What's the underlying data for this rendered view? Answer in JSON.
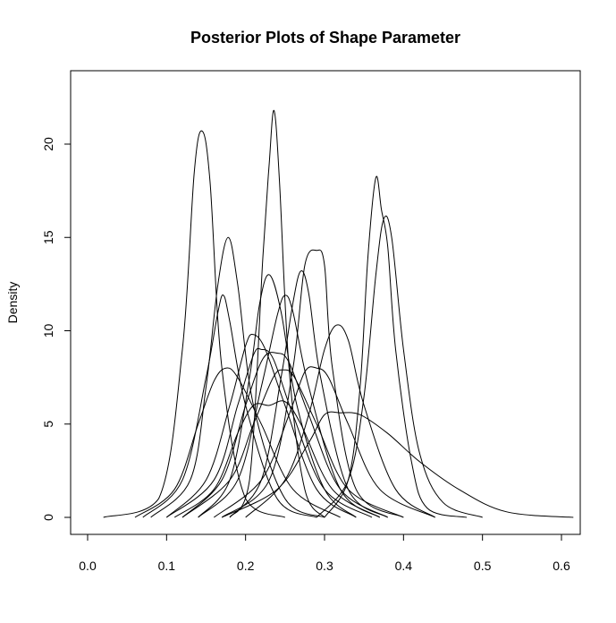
{
  "chart_data": {
    "type": "line",
    "title": "Posterior Plots of Shape Parameter",
    "xlabel": "",
    "ylabel": "Density",
    "xlim": [
      0.0,
      0.62
    ],
    "ylim": [
      0,
      23
    ],
    "x_ticks": [
      0.0,
      0.1,
      0.2,
      0.3,
      0.4,
      0.5,
      0.6
    ],
    "x_tick_labels": [
      "0.0",
      "0.1",
      "0.2",
      "0.3",
      "0.4",
      "0.5",
      "0.6"
    ],
    "y_ticks": [
      0,
      5,
      10,
      15,
      20
    ],
    "y_tick_labels": [
      "0",
      "5",
      "10",
      "15",
      "20"
    ],
    "grid": false,
    "legend": "none",
    "series": [
      {
        "x": [
          0.02,
          0.09,
          0.12,
          0.135,
          0.145,
          0.155,
          0.17,
          0.2,
          0.25
        ],
        "y": [
          0,
          1.0,
          9.0,
          18.5,
          20.7,
          18.0,
          8.0,
          1.0,
          0
        ]
      },
      {
        "x": [
          0.08,
          0.13,
          0.15,
          0.165,
          0.178,
          0.19,
          0.21,
          0.25,
          0.3
        ],
        "y": [
          0,
          2.0,
          7.0,
          12.5,
          15.0,
          12.5,
          6.0,
          1.0,
          0
        ]
      },
      {
        "x": [
          0.07,
          0.12,
          0.15,
          0.165,
          0.172,
          0.18,
          0.2,
          0.24,
          0.29
        ],
        "y": [
          0,
          2.0,
          7.5,
          11.0,
          11.9,
          10.5,
          6.0,
          1.0,
          0
        ]
      },
      {
        "x": [
          0.06,
          0.11,
          0.14,
          0.16,
          0.175,
          0.19,
          0.22,
          0.26,
          0.32
        ],
        "y": [
          0,
          1.5,
          5.0,
          7.3,
          8.0,
          7.5,
          5.0,
          1.5,
          0
        ]
      },
      {
        "x": [
          0.18,
          0.205,
          0.222,
          0.23,
          0.236,
          0.243,
          0.255,
          0.275,
          0.3
        ],
        "y": [
          0,
          2.0,
          14.0,
          19.0,
          21.8,
          18.0,
          8.0,
          1.5,
          0
        ]
      },
      {
        "x": [
          0.14,
          0.18,
          0.205,
          0.218,
          0.23,
          0.245,
          0.265,
          0.3,
          0.34
        ],
        "y": [
          0,
          2.0,
          7.5,
          11.5,
          13.0,
          11.0,
          6.0,
          1.5,
          0
        ]
      },
      {
        "x": [
          0.1,
          0.15,
          0.18,
          0.2,
          0.21,
          0.225,
          0.25,
          0.29,
          0.34
        ],
        "y": [
          0,
          2.0,
          6.0,
          9.2,
          9.8,
          9.0,
          6.0,
          1.5,
          0
        ]
      },
      {
        "x": [
          0.1,
          0.16,
          0.19,
          0.21,
          0.22,
          0.235,
          0.26,
          0.3,
          0.36
        ],
        "y": [
          0,
          2.0,
          6.0,
          8.7,
          9.0,
          8.5,
          5.5,
          1.5,
          0
        ]
      },
      {
        "x": [
          0.12,
          0.17,
          0.2,
          0.222,
          0.24,
          0.255,
          0.28,
          0.32,
          0.38
        ],
        "y": [
          0,
          2.0,
          6.0,
          8.5,
          8.8,
          8.3,
          5.5,
          1.5,
          0
        ]
      },
      {
        "x": [
          0.11,
          0.16,
          0.19,
          0.21,
          0.23,
          0.25,
          0.27,
          0.31,
          0.37
        ],
        "y": [
          0,
          1.5,
          4.5,
          6.0,
          6.0,
          6.2,
          5.0,
          1.5,
          0
        ]
      },
      {
        "x": [
          0.14,
          0.19,
          0.22,
          0.24,
          0.25,
          0.26,
          0.28,
          0.32,
          0.37
        ],
        "y": [
          0,
          2.0,
          7.0,
          10.8,
          11.9,
          11.0,
          7.0,
          1.5,
          0
        ]
      },
      {
        "x": [
          0.12,
          0.18,
          0.21,
          0.235,
          0.248,
          0.262,
          0.29,
          0.33,
          0.4
        ],
        "y": [
          0,
          2.0,
          5.0,
          7.5,
          7.9,
          7.5,
          5.0,
          1.5,
          0
        ]
      },
      {
        "x": [
          0.18,
          0.22,
          0.245,
          0.26,
          0.27,
          0.28,
          0.295,
          0.33,
          0.38
        ],
        "y": [
          0,
          2.0,
          7.5,
          11.5,
          13.2,
          12.0,
          7.5,
          1.5,
          0
        ]
      },
      {
        "x": [
          0.17,
          0.23,
          0.26,
          0.275,
          0.29,
          0.3,
          0.31,
          0.34,
          0.4
        ],
        "y": [
          0,
          2.0,
          8.0,
          13.5,
          14.3,
          13.5,
          8.0,
          1.5,
          0
        ]
      },
      {
        "x": [
          0.16,
          0.22,
          0.255,
          0.275,
          0.29,
          0.305,
          0.33,
          0.37,
          0.44
        ],
        "y": [
          0,
          2.0,
          5.5,
          7.8,
          8.0,
          7.5,
          5.0,
          1.5,
          0
        ]
      },
      {
        "x": [
          0.2,
          0.25,
          0.28,
          0.3,
          0.315,
          0.33,
          0.35,
          0.39,
          0.44
        ],
        "y": [
          0,
          2.0,
          5.5,
          9.0,
          10.3,
          9.5,
          6.0,
          1.5,
          0
        ]
      },
      {
        "x": [
          0.17,
          0.24,
          0.28,
          0.3,
          0.32,
          0.345,
          0.38,
          0.42,
          0.47,
          0.53,
          0.615
        ],
        "y": [
          0,
          1.5,
          4.0,
          5.5,
          5.6,
          5.5,
          4.5,
          3.0,
          1.5,
          0.3,
          0
        ]
      },
      {
        "x": [
          0.3,
          0.33,
          0.345,
          0.355,
          0.365,
          0.372,
          0.38,
          0.39,
          0.41,
          0.43,
          0.48
        ],
        "y": [
          0,
          2.0,
          7.0,
          14.0,
          18.2,
          16.5,
          14.5,
          9.0,
          3.0,
          0.5,
          0
        ]
      },
      {
        "x": [
          0.29,
          0.33,
          0.35,
          0.365,
          0.375,
          0.385,
          0.4,
          0.42,
          0.45,
          0.5
        ],
        "y": [
          0,
          2.0,
          6.5,
          13.0,
          16.0,
          15.0,
          9.0,
          3.5,
          0.8,
          0
        ]
      }
    ]
  }
}
